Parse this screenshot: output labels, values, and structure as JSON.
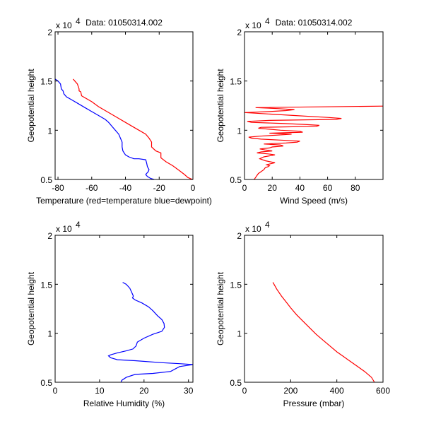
{
  "chart_data": [
    {
      "type": "line",
      "title": "Data: 01050314.002",
      "xlabel": "Temperature (red=temperature blue=dewpoint)",
      "ylabel": "Geopotential height",
      "y_multiplier": "x 10",
      "y_multiplier_exp": "4",
      "xlim": [
        -81.7,
        0
      ],
      "ylim": [
        0.5,
        2
      ],
      "xticks": [
        -80,
        -60,
        -40,
        -20,
        0
      ],
      "xtick_labels": [
        "-80",
        "-60",
        "-40",
        "-20",
        "0"
      ],
      "yticks": [
        0.5,
        1,
        1.5,
        2
      ],
      "ytick_labels": [
        "0.5",
        "1",
        "1.5",
        "2"
      ],
      "grid": false,
      "series": [
        {
          "name": "temperature",
          "color": "#ff0000",
          "x": [
            -71,
            -70,
            -68.5,
            -67.5,
            -67.5,
            -66.5,
            -66,
            -64,
            -60,
            -56,
            -52,
            -48,
            -44,
            -40,
            -36,
            -32,
            -28,
            -26,
            -24.5,
            -24.5,
            -22,
            -19,
            -19,
            -16,
            -12,
            -8,
            -5,
            -3,
            -1,
            0
          ],
          "y": [
            1.52,
            1.5,
            1.47,
            1.42,
            1.4,
            1.39,
            1.35,
            1.33,
            1.29,
            1.24,
            1.2,
            1.16,
            1.12,
            1.08,
            1.04,
            1.0,
            0.96,
            0.92,
            0.88,
            0.83,
            0.79,
            0.77,
            0.72,
            0.68,
            0.64,
            0.59,
            0.55,
            0.52,
            0.505,
            0.5
          ]
        },
        {
          "name": "dewpoint",
          "color": "#0000ff",
          "x": [
            -81.7,
            -80,
            -78.5,
            -78,
            -77,
            -76.5,
            -75,
            -72,
            -68,
            -64,
            -60,
            -56,
            -52,
            -50,
            -48,
            -46,
            -44,
            -43,
            -42,
            -42,
            -41.5,
            -40,
            -38,
            -35,
            -32,
            -28,
            -27.5,
            -27,
            -26,
            -26.5,
            -28,
            -27,
            -25,
            -23
          ],
          "y": [
            1.52,
            1.5,
            1.47,
            1.42,
            1.4,
            1.37,
            1.34,
            1.31,
            1.27,
            1.23,
            1.19,
            1.15,
            1.11,
            1.08,
            1.04,
            1.0,
            0.96,
            0.92,
            0.88,
            0.83,
            0.79,
            0.75,
            0.73,
            0.71,
            0.71,
            0.7,
            0.67,
            0.63,
            0.6,
            0.58,
            0.55,
            0.53,
            0.51,
            0.5
          ]
        }
      ]
    },
    {
      "type": "line",
      "title": "Data: 01050314.002",
      "xlabel": "Wind Speed (m/s)",
      "ylabel": "Geopotential height",
      "y_multiplier": "x 10",
      "y_multiplier_exp": "4",
      "xlim": [
        0,
        100
      ],
      "ylim": [
        0.5,
        2
      ],
      "xticks": [
        0,
        20,
        40,
        60,
        80
      ],
      "xtick_labels": [
        "0",
        "20",
        "40",
        "60",
        "80"
      ],
      "yticks": [
        0.5,
        1,
        1.5,
        2
      ],
      "ytick_labels": [
        "0.5",
        "1",
        "1.5",
        "2"
      ],
      "grid": false,
      "series": [
        {
          "name": "wind speed",
          "color": "#ff0000",
          "x": [
            7,
            8,
            9,
            10,
            12,
            14,
            15,
            17,
            18,
            16,
            19,
            22,
            15,
            11,
            14,
            22,
            17,
            9,
            12,
            20,
            15,
            11,
            18,
            20,
            28,
            26,
            14,
            30,
            38,
            40,
            26,
            12,
            5,
            3,
            11,
            23,
            34,
            18,
            42,
            40,
            26,
            18,
            10,
            12,
            52,
            54,
            42,
            26,
            5,
            2,
            18,
            66,
            70,
            60,
            35,
            0,
            18,
            30,
            36,
            24,
            8,
            100
          ],
          "y": [
            0.5,
            0.52,
            0.54,
            0.56,
            0.58,
            0.6,
            0.62,
            0.63,
            0.64,
            0.65,
            0.66,
            0.67,
            0.69,
            0.71,
            0.73,
            0.75,
            0.76,
            0.77,
            0.78,
            0.79,
            0.8,
            0.81,
            0.82,
            0.83,
            0.84,
            0.85,
            0.86,
            0.87,
            0.88,
            0.89,
            0.9,
            0.91,
            0.92,
            0.93,
            0.94,
            0.95,
            0.96,
            0.97,
            0.98,
            0.99,
            1.0,
            1.01,
            1.02,
            1.03,
            1.04,
            1.05,
            1.06,
            1.07,
            1.08,
            1.09,
            1.1,
            1.11,
            1.12,
            1.13,
            1.15,
            1.18,
            1.19,
            1.2,
            1.21,
            1.22,
            1.23,
            1.245
          ]
        }
      ]
    },
    {
      "type": "line",
      "title": "",
      "xlabel": "Relative Humidity (%)",
      "ylabel": "Geopotential height",
      "y_multiplier": "x 10",
      "y_multiplier_exp": "4",
      "xlim": [
        0,
        31
      ],
      "ylim": [
        0.5,
        2
      ],
      "xticks": [
        0,
        10,
        20,
        30
      ],
      "xtick_labels": [
        "0",
        "10",
        "20",
        "30"
      ],
      "yticks": [
        0.5,
        1,
        1.5,
        2
      ],
      "ytick_labels": [
        "0.5",
        "1",
        "1.5",
        "2"
      ],
      "grid": false,
      "series": [
        {
          "name": "relative humidity",
          "color": "#0000ff",
          "x": [
            15.2,
            16,
            16.8,
            17.2,
            17.6,
            17.4,
            18,
            19.5,
            21,
            22,
            23,
            24,
            24.5,
            24.6,
            24,
            22,
            20,
            18.5,
            18.2,
            17.5,
            16,
            14,
            12.5,
            12,
            12.5,
            14,
            18,
            24,
            28,
            31,
            28,
            26,
            22,
            18,
            16,
            15,
            14.8
          ],
          "y": [
            1.52,
            1.5,
            1.46,
            1.42,
            1.38,
            1.36,
            1.34,
            1.31,
            1.27,
            1.23,
            1.18,
            1.14,
            1.1,
            1.06,
            1.02,
            0.99,
            0.95,
            0.91,
            0.87,
            0.84,
            0.82,
            0.8,
            0.78,
            0.77,
            0.75,
            0.73,
            0.72,
            0.7,
            0.69,
            0.68,
            0.66,
            0.61,
            0.59,
            0.58,
            0.55,
            0.52,
            0.5
          ]
        }
      ]
    },
    {
      "type": "line",
      "title": "",
      "xlabel": "Pressure (mbar)",
      "ylabel": "Geopotential height",
      "y_multiplier": "x 10",
      "y_multiplier_exp": "4",
      "xlim": [
        0,
        600
      ],
      "ylim": [
        0.5,
        2
      ],
      "xticks": [
        0,
        200,
        400,
        600
      ],
      "xtick_labels": [
        "0",
        "200",
        "400",
        "600"
      ],
      "yticks": [
        0.5,
        1,
        1.5,
        2
      ],
      "ytick_labels": [
        "0.5",
        "1",
        "1.5",
        "2"
      ],
      "grid": false,
      "series": [
        {
          "name": "pressure",
          "color": "#ff0000",
          "x": [
            123,
            140,
            160,
            180,
            200,
            225,
            250,
            280,
            310,
            340,
            370,
            400,
            430,
            460,
            490,
            520,
            550,
            563
          ],
          "y": [
            1.52,
            1.45,
            1.38,
            1.32,
            1.26,
            1.19,
            1.13,
            1.06,
            0.99,
            0.93,
            0.87,
            0.81,
            0.76,
            0.71,
            0.66,
            0.61,
            0.55,
            0.5
          ]
        }
      ]
    }
  ]
}
